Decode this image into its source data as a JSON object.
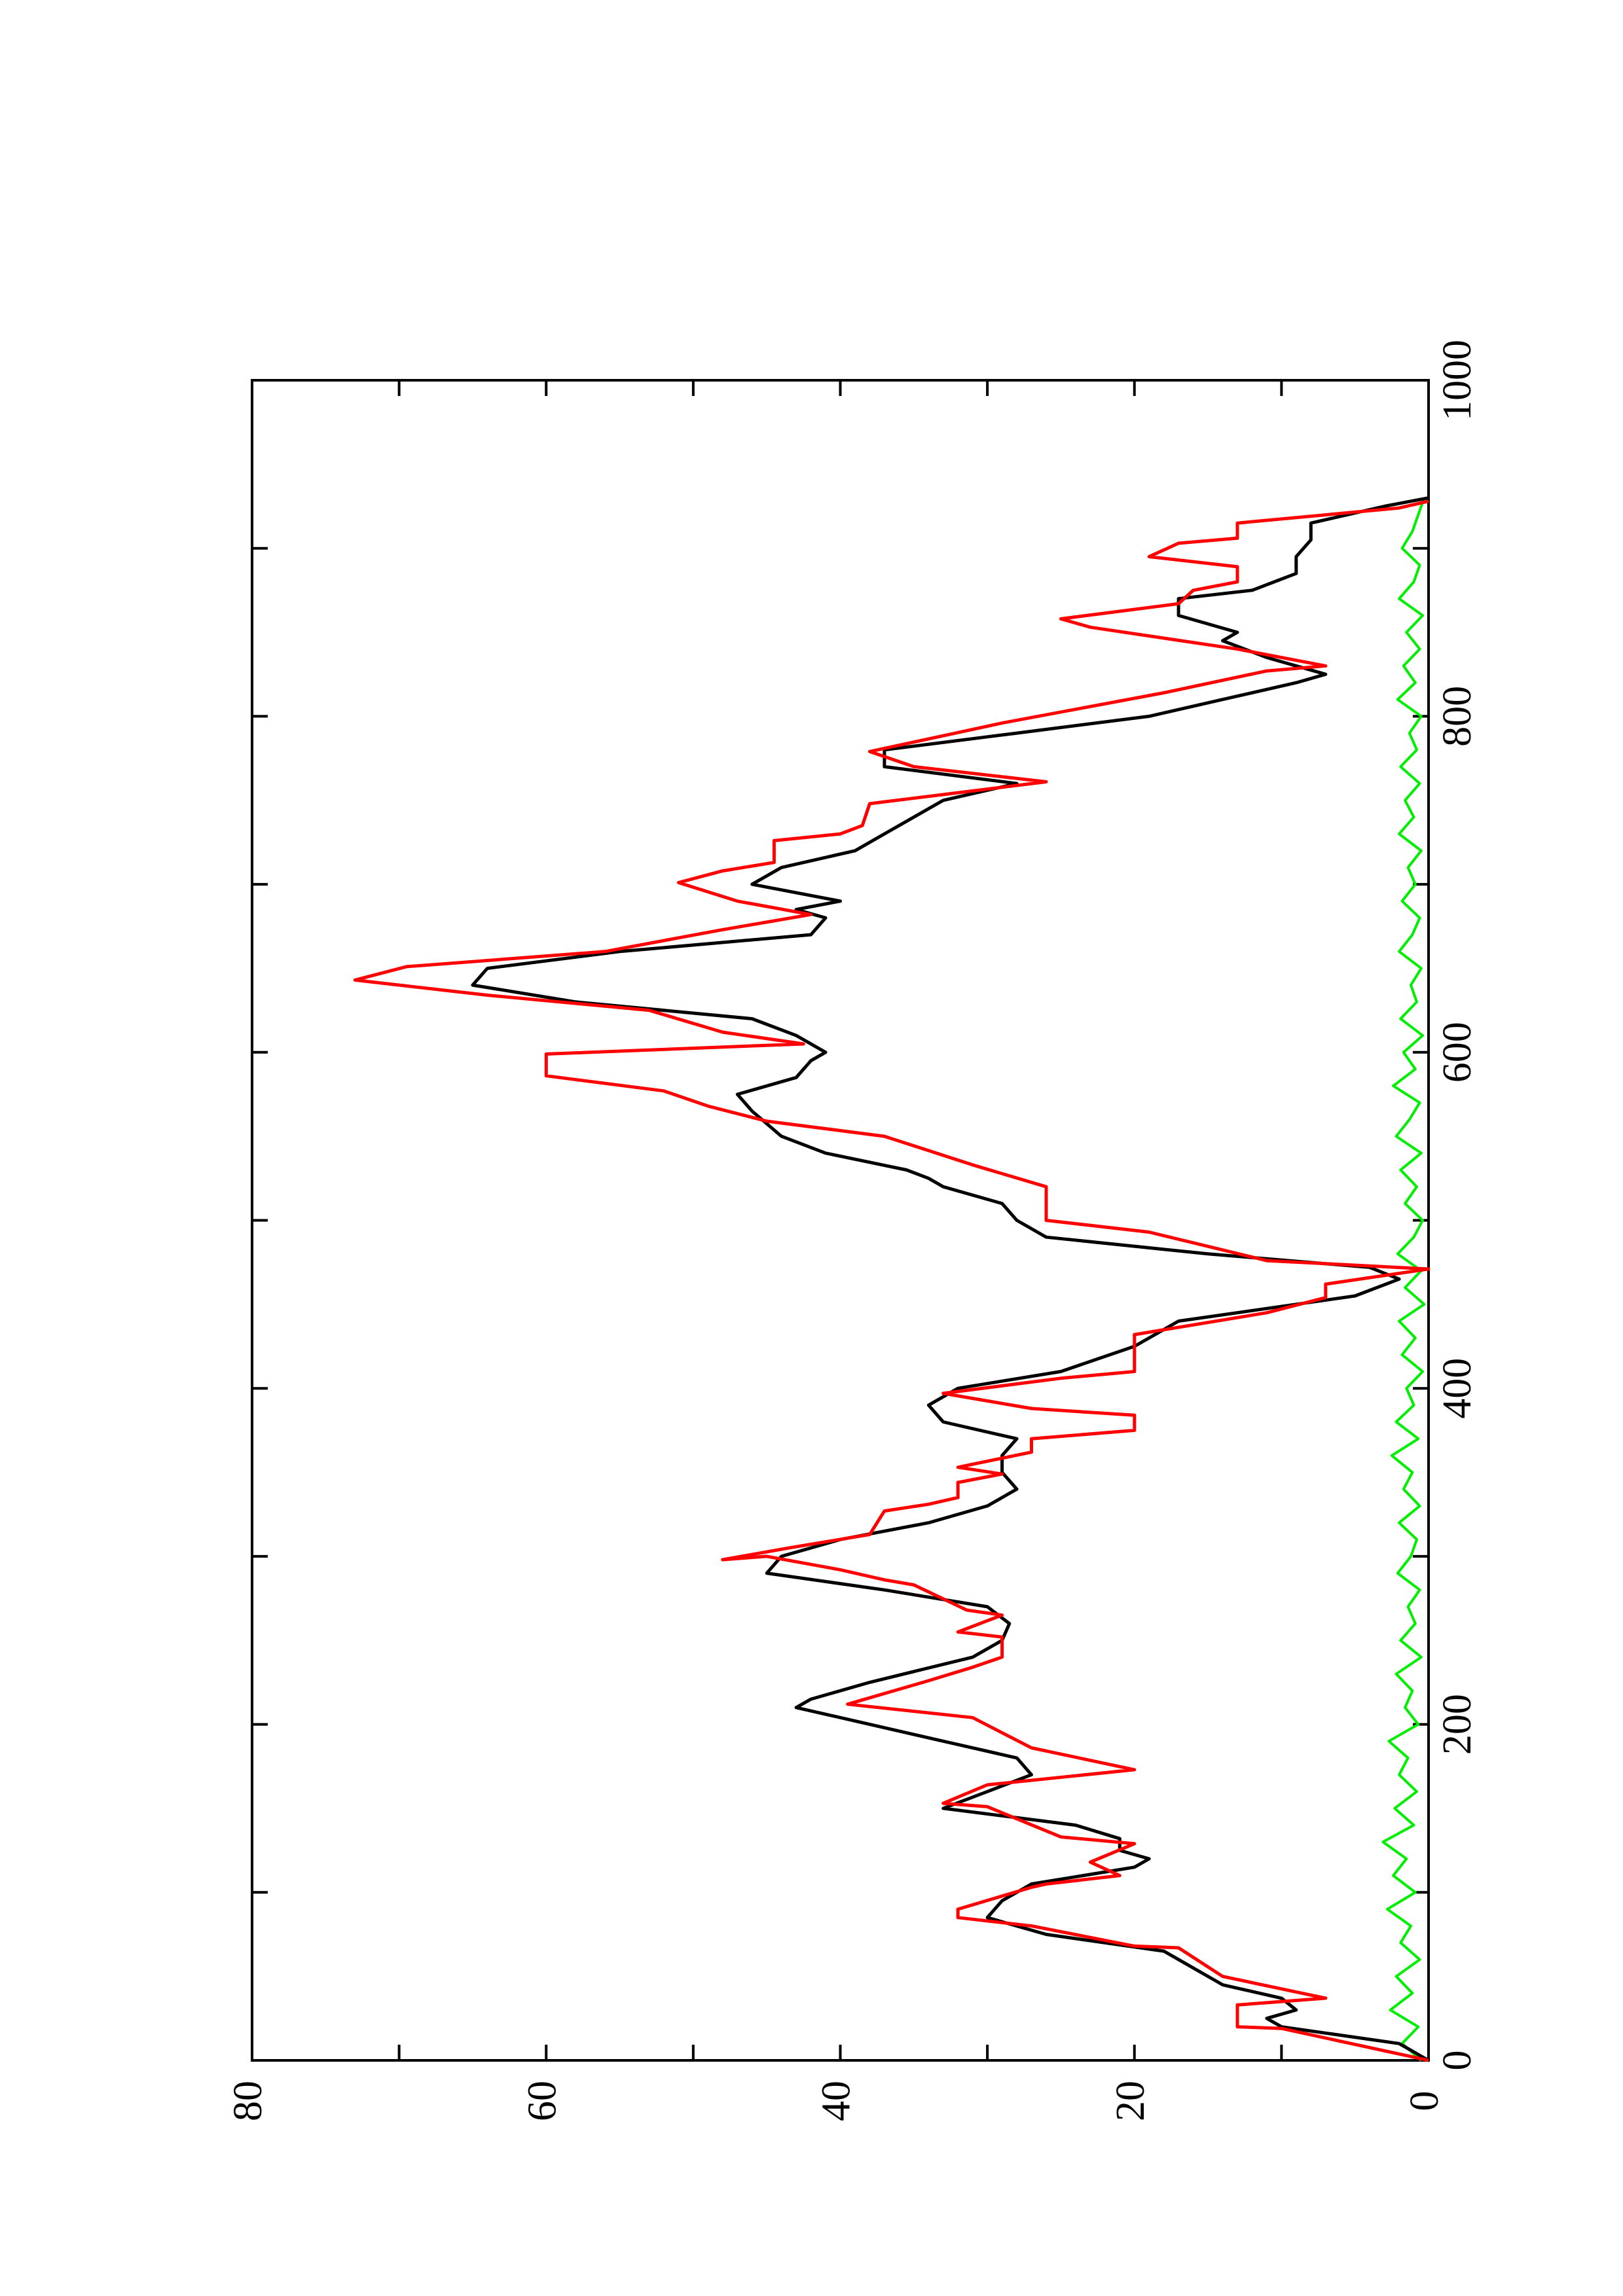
{
  "chart_data": {
    "type": "line",
    "orientation": "rotated",
    "xlim": [
      0,
      1000
    ],
    "xticks": [
      0,
      200,
      400,
      600,
      800,
      1000
    ],
    "xminor_ticks": [
      100,
      300,
      500,
      700,
      900
    ],
    "ylim": [
      0,
      80
    ],
    "yticks": [
      0,
      20,
      40,
      60,
      80
    ],
    "yminor_ticks": [
      10,
      30,
      50,
      70
    ],
    "series": [
      {
        "color": "#ff0000",
        "width": 5,
        "x": [
          0,
          19,
          20,
          33,
          37,
          50,
          67,
          68,
          80,
          85,
          90,
          103,
          105,
          110,
          118,
          129,
          133,
          151,
          153,
          164,
          173,
          186,
          204,
          212,
          226,
          234,
          240,
          252,
          255,
          265,
          268,
          283,
          286,
          292,
          300,
          298,
          305,
          313,
          327,
          331,
          335,
          344,
          349,
          353,
          362,
          370,
          375,
          384,
          388,
          397,
          406,
          410,
          432,
          445,
          454,
          462,
          471,
          476,
          493,
          500,
          520,
          533,
          550,
          559,
          568,
          577,
          586,
          599,
          605,
          612,
          625,
          634,
          643,
          651,
          660,
          673,
          682,
          690,
          701,
          708,
          713,
          726,
          730,
          735,
          748,
          761,
          770,
          779,
          796,
          814,
          827,
          830,
          840,
          853,
          858,
          867,
          875,
          880,
          889,
          895,
          903,
          906,
          915,
          924,
          928
        ],
        "values": [
          0,
          10,
          13,
          13,
          7,
          14,
          17,
          20,
          27,
          32,
          32,
          27,
          26,
          21,
          23,
          20,
          25,
          30,
          33,
          30,
          20,
          27,
          31,
          39.5,
          34,
          31,
          29,
          29,
          32,
          29,
          31.4,
          35,
          37,
          40,
          45,
          48,
          43.5,
          38,
          37,
          34,
          32,
          32,
          29,
          32,
          27,
          27,
          20,
          20,
          27,
          33,
          25,
          20,
          20,
          11,
          7,
          7,
          0,
          11,
          19,
          26,
          26,
          31,
          37,
          45,
          49,
          52,
          60,
          60,
          42.5,
          48,
          53,
          64,
          73,
          69.5,
          56,
          48,
          42,
          47,
          51,
          48,
          44.5,
          44.5,
          40,
          38.5,
          38,
          26,
          35,
          38,
          29,
          18,
          11,
          7,
          13,
          23,
          25,
          17,
          16,
          13,
          13,
          19,
          17,
          13,
          13,
          2,
          0
        ]
      },
      {
        "color": "#000000",
        "width": 5,
        "x": [
          0,
          10,
          20,
          25,
          30,
          37,
          45,
          55,
          65,
          75,
          85,
          95,
          105,
          115,
          120,
          125,
          132,
          140,
          150,
          160,
          170,
          180,
          190,
          200,
          210,
          215,
          225,
          240,
          250,
          260,
          270,
          280,
          290,
          300,
          310,
          320,
          330,
          340,
          350,
          360,
          370,
          380,
          390,
          400,
          410,
          425,
          440,
          455,
          465,
          472,
          480,
          490,
          500,
          510,
          520,
          525,
          530,
          540,
          550,
          565,
          575,
          585,
          595,
          600,
          610,
          620,
          630,
          640,
          650,
          660,
          670,
          680,
          685,
          690,
          700,
          710,
          720,
          730,
          740,
          750,
          760,
          770,
          780,
          790,
          800,
          810,
          820,
          825,
          835,
          845,
          850,
          860,
          870,
          875,
          885,
          895,
          905,
          915,
          925,
          930
        ],
        "values": [
          0,
          2,
          10,
          11,
          9,
          10,
          14,
          16,
          18,
          26,
          30,
          29,
          27,
          20,
          19,
          21,
          21,
          24,
          33,
          30,
          27,
          28,
          33,
          38,
          43,
          42,
          38,
          31,
          29,
          28.5,
          30,
          37,
          45,
          44,
          40,
          34,
          30,
          28,
          29,
          29,
          28,
          33,
          34,
          32,
          25,
          20,
          17,
          5,
          2,
          4,
          15,
          26,
          28,
          29,
          33,
          34,
          35.5,
          41,
          44,
          46,
          47,
          43,
          42,
          41,
          43,
          46,
          58,
          65,
          64,
          55,
          42,
          41,
          43,
          40,
          46,
          44,
          39,
          37,
          35,
          33,
          28,
          37,
          37,
          28,
          19,
          14,
          9,
          7,
          11,
          14,
          13,
          17,
          17,
          12,
          9,
          9,
          8,
          8,
          3,
          0
        ]
      },
      {
        "color": "#00ee00",
        "width": 4,
        "x": [
          0,
          10,
          20,
          30,
          40,
          50,
          60,
          70,
          80,
          90,
          100,
          110,
          120,
          130,
          140,
          150,
          160,
          170,
          180,
          190,
          200,
          210,
          220,
          230,
          240,
          250,
          260,
          270,
          280,
          290,
          300,
          310,
          320,
          330,
          340,
          350,
          360,
          370,
          380,
          390,
          400,
          410,
          420,
          430,
          440,
          450,
          460,
          470,
          480,
          490,
          500,
          510,
          520,
          530,
          540,
          550,
          560,
          570,
          580,
          590,
          600,
          610,
          620,
          630,
          640,
          650,
          660,
          670,
          680,
          690,
          700,
          710,
          720,
          730,
          740,
          750,
          760,
          770,
          780,
          790,
          800,
          810,
          820,
          830,
          840,
          850,
          860,
          870,
          880,
          890,
          900,
          910,
          920,
          930
        ],
        "values": [
          0.5,
          1.8,
          0.7,
          2.6,
          1.1,
          2.2,
          0.6,
          1.9,
          1.2,
          2.8,
          0.9,
          2.4,
          1.5,
          3.1,
          1.0,
          2.3,
          0.8,
          2.0,
          1.4,
          2.7,
          0.7,
          1.6,
          1.1,
          2.2,
          0.5,
          1.9,
          0.9,
          1.4,
          0.6,
          2.1,
          1.2,
          0.8,
          2.0,
          0.6,
          1.7,
          1.1,
          2.5,
          0.7,
          2.2,
          1.0,
          1.5,
          0.4,
          1.8,
          0.9,
          2.0,
          0.3,
          1.6,
          0.5,
          2.1,
          1.0,
          0.4,
          1.6,
          0.8,
          1.9,
          0.5,
          2.2,
          1.3,
          0.6,
          2.4,
          0.9,
          1.7,
          0.4,
          1.9,
          0.8,
          1.2,
          0.5,
          2.0,
          1.1,
          0.6,
          1.8,
          0.9,
          1.4,
          0.5,
          2.0,
          1.0,
          1.6,
          0.6,
          1.9,
          0.8,
          1.3,
          0.5,
          2.1,
          0.9,
          1.7,
          0.6,
          1.5,
          0.4,
          2.0,
          1.0,
          0.6,
          1.8,
          1.1,
          0.7,
          0.3
        ]
      }
    ]
  }
}
